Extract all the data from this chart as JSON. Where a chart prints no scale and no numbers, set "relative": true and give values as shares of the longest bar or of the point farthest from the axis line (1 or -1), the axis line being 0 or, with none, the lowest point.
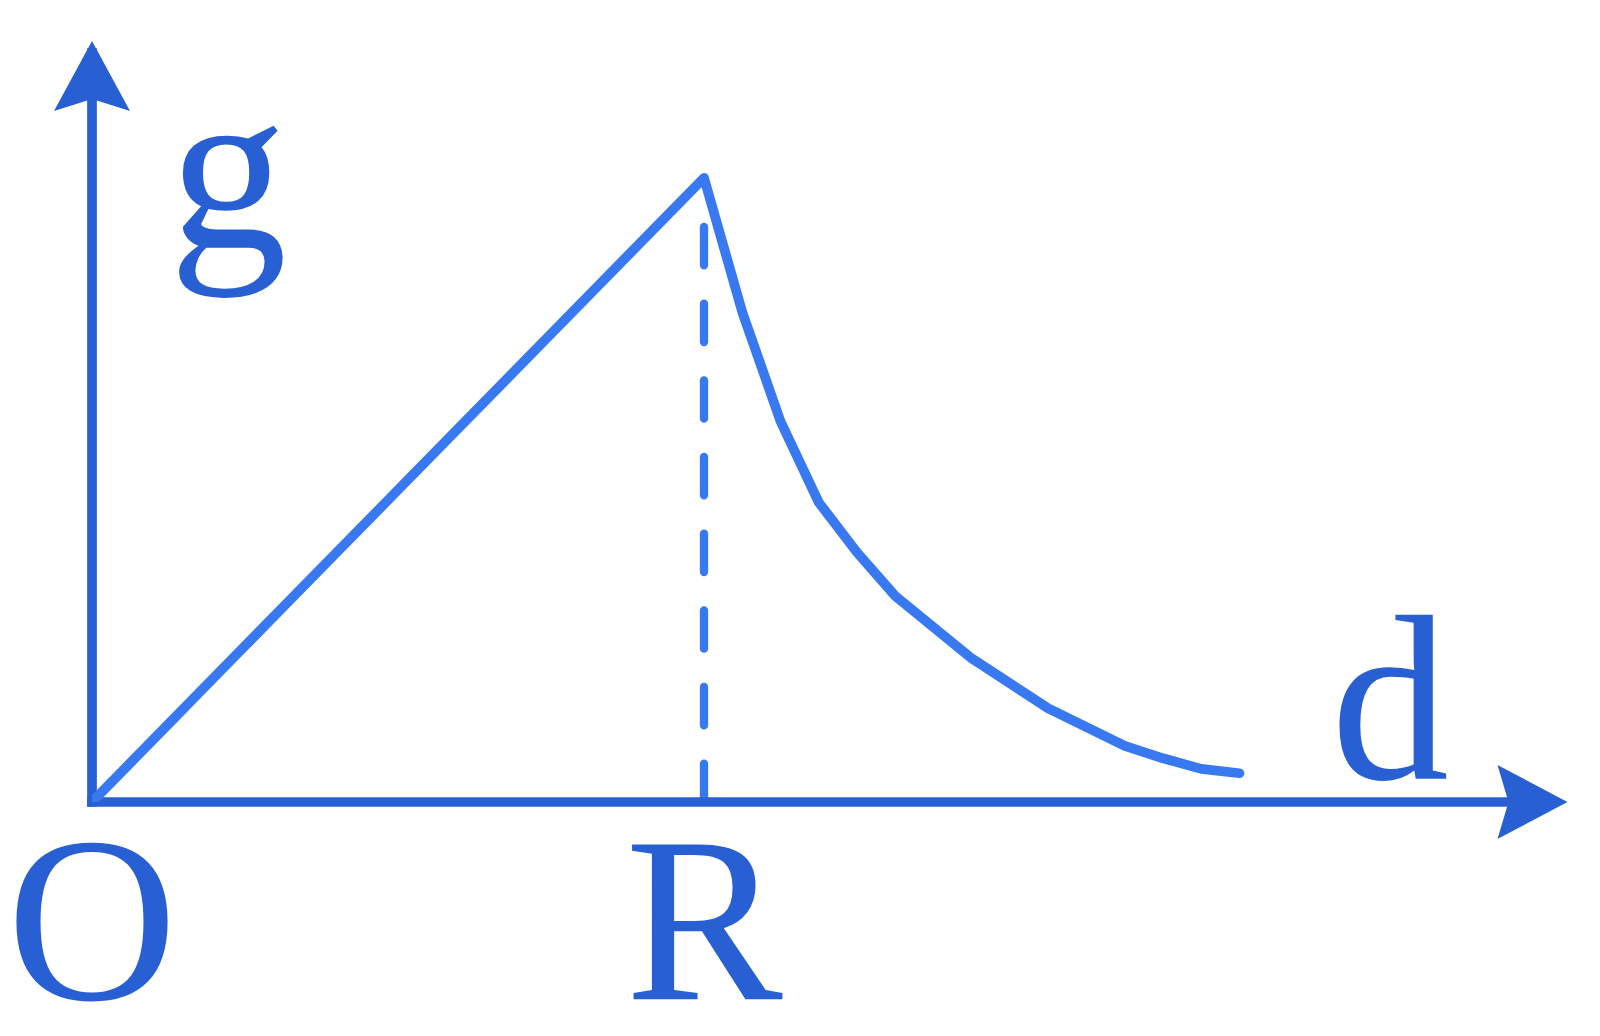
{
  "chart_data": {
    "type": "line",
    "xlabel": "d",
    "ylabel": "g",
    "relative": true,
    "categories": [
      "O",
      null,
      null,
      null,
      null,
      null,
      null,
      null,
      null,
      null,
      null,
      null,
      null,
      null,
      null,
      null,
      "R",
      null,
      null,
      null,
      null,
      null,
      null,
      null,
      null,
      null,
      null,
      null,
      null,
      null,
      null,
      null,
      null,
      null,
      null,
      null,
      null,
      null,
      null
    ],
    "series": [
      {
        "color": "#3878f0",
        "values": [
          0,
          0.0625,
          0.125,
          0.1875,
          0.25,
          0.3125,
          0.375,
          0.4375,
          0.5,
          0.5625,
          0.625,
          0.6875,
          0.75,
          0.8125,
          0.875,
          0.9375,
          1,
          0.785,
          0.61,
          0.48,
          0.4,
          0.33,
          0.28,
          0.23,
          0.19,
          0.15,
          0.12,
          0.09,
          0.07,
          0.053,
          0.046,
          null,
          null,
          null,
          null,
          null,
          null,
          null,
          null
        ]
      }
    ],
    "ref_lines": [
      {
        "axis": "x",
        "value": "R",
        "line_style": "dashed",
        "color": "#3878f0"
      }
    ],
    "tick_labels": "x",
    "grid": false,
    "line_style": "solid"
  }
}
